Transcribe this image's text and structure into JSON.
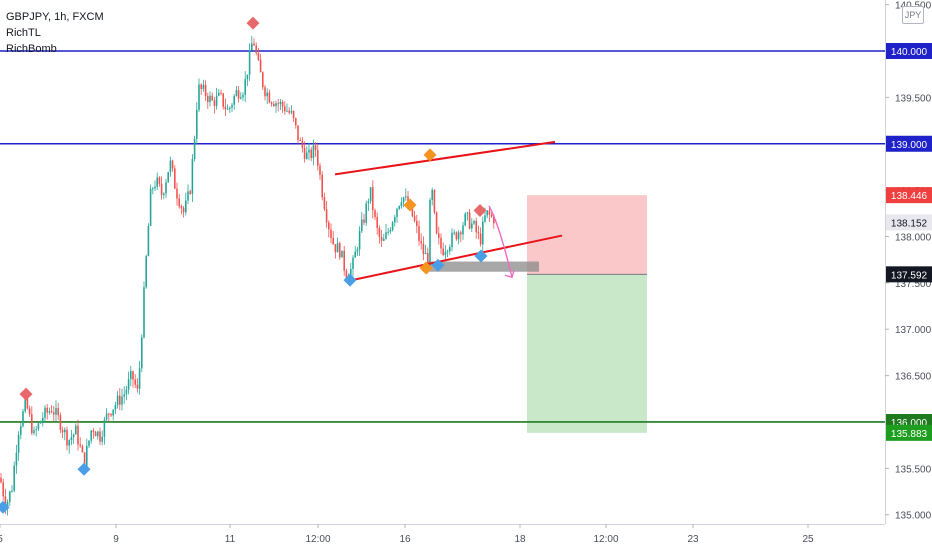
{
  "header": {
    "symbol_line": "GBPJPY, 1h, FXCM",
    "indicator_1": "RichTL",
    "indicator_2": "RichBomb",
    "currency_badge": "JPY"
  },
  "chart_data": {
    "type": "candlestick",
    "symbol": "GBPJPY",
    "timeframe": "1h",
    "source": "FXCM",
    "currency": "JPY",
    "y_axis": {
      "range": [
        134.9,
        140.55
      ],
      "ticks": [
        {
          "value": 135.0,
          "label": "135.000"
        },
        {
          "value": 135.5,
          "label": "135.500"
        },
        {
          "value": 136.5,
          "label": "136.500"
        },
        {
          "value": 137.0,
          "label": "137.000"
        },
        {
          "value": 137.5,
          "label": "137.500"
        },
        {
          "value": 138.0,
          "label": "138.000"
        },
        {
          "value": 138.5,
          "label": "138.500"
        },
        {
          "value": 139.5,
          "label": "139.500"
        },
        {
          "value": 140.5,
          "label": "140.500"
        }
      ]
    },
    "x_axis": {
      "ticks": [
        {
          "t": 0,
          "label": "5"
        },
        {
          "t": 116,
          "label": "9"
        },
        {
          "t": 230,
          "label": "11"
        },
        {
          "t": 318,
          "label": "12:00"
        },
        {
          "t": 405,
          "label": "16"
        },
        {
          "t": 520,
          "label": "18"
        },
        {
          "t": 606,
          "label": "12:00"
        },
        {
          "t": 693,
          "label": "23"
        },
        {
          "t": 808,
          "label": "25"
        }
      ]
    },
    "horizontal_levels": [
      {
        "price": 140.0,
        "label": "140.000",
        "color": "#1e22c8"
      },
      {
        "price": 139.0,
        "label": "139.000",
        "color": "#1e22c8"
      },
      {
        "price": 136.0,
        "label": "136.000",
        "color": "#1f7a1f"
      }
    ],
    "price_labels": [
      {
        "price": 138.446,
        "label": "138.446",
        "bg": "#ef3f3f",
        "fg": "#ffffff"
      },
      {
        "price": 138.152,
        "label": "138.152",
        "bg": "#e8e8ee",
        "fg": "#131722"
      },
      {
        "price": 137.592,
        "label": "137.592",
        "bg": "#131722",
        "fg": "#ffffff"
      },
      {
        "price": 135.883,
        "label": "135.883",
        "bg": "#1e9e1e",
        "fg": "#ffffff"
      }
    ],
    "position": {
      "side": "short",
      "entry": 137.592,
      "stop": 138.446,
      "target": 135.883,
      "t_start": 527,
      "t_end": 647,
      "risk_color": "#f7a3a3",
      "reward_color": "#a3d9a5"
    },
    "trendlines": [
      {
        "t1": 335,
        "p1": 138.67,
        "t2": 555,
        "p2": 139.02,
        "color": "#e8141a"
      },
      {
        "t1": 352,
        "p1": 137.53,
        "t2": 562,
        "p2": 138.01,
        "color": "#e8141a"
      }
    ],
    "zone": {
      "t1": 428,
      "t2": 539,
      "p_top": 137.73,
      "p_bottom": 137.62,
      "color": "#8a8a8a"
    },
    "forecast_arrow": {
      "t1": 489,
      "p1": 138.33,
      "t2": 512,
      "p2": 137.56,
      "color": "#f06bc0"
    },
    "markers": [
      {
        "t": 253,
        "price": 140.3,
        "kind": "peak",
        "color": "#e8696b"
      },
      {
        "t": 26,
        "price": 136.3,
        "kind": "peak",
        "color": "#e8696b"
      },
      {
        "t": 480,
        "price": 138.28,
        "kind": "peak",
        "color": "#e8696b"
      },
      {
        "t": 430,
        "price": 138.88,
        "kind": "pivot-high",
        "color": "#f5951f"
      },
      {
        "t": 410,
        "price": 138.34,
        "kind": "pivot-high",
        "color": "#f5951f"
      },
      {
        "t": 426,
        "price": 137.66,
        "kind": "pivot-low",
        "color": "#f5951f"
      },
      {
        "t": 350,
        "price": 137.53,
        "kind": "trough",
        "color": "#4a9ee6"
      },
      {
        "t": 438,
        "price": 137.69,
        "kind": "trough",
        "color": "#4a9ee6"
      },
      {
        "t": 481,
        "price": 137.79,
        "kind": "trough",
        "color": "#4a9ee6"
      },
      {
        "t": 84,
        "price": 135.49,
        "kind": "trough",
        "color": "#4a9ee6"
      },
      {
        "t": 3,
        "price": 135.08,
        "kind": "trough",
        "color": "#4a9ee6"
      }
    ],
    "price_path": [
      [
        0,
        135.4
      ],
      [
        6,
        135.1
      ],
      [
        12,
        135.3
      ],
      [
        18,
        135.9
      ],
      [
        26,
        136.2
      ],
      [
        34,
        135.85
      ],
      [
        42,
        136.05
      ],
      [
        52,
        136.15
      ],
      [
        60,
        136.0
      ],
      [
        68,
        135.8
      ],
      [
        76,
        135.9
      ],
      [
        84,
        135.55
      ],
      [
        92,
        135.95
      ],
      [
        100,
        135.85
      ],
      [
        108,
        136.1
      ],
      [
        116,
        136.2
      ],
      [
        124,
        136.3
      ],
      [
        132,
        136.5
      ],
      [
        138,
        136.3
      ],
      [
        143,
        137.2
      ],
      [
        147,
        137.9
      ],
      [
        151,
        138.5
      ],
      [
        156,
        138.6
      ],
      [
        162,
        138.45
      ],
      [
        170,
        138.8
      ],
      [
        176,
        138.5
      ],
      [
        184,
        138.25
      ],
      [
        190,
        138.5
      ],
      [
        194,
        139.0
      ],
      [
        198,
        139.6
      ],
      [
        205,
        139.55
      ],
      [
        212,
        139.45
      ],
      [
        220,
        139.5
      ],
      [
        228,
        139.35
      ],
      [
        236,
        139.55
      ],
      [
        244,
        139.6
      ],
      [
        250,
        139.95
      ],
      [
        253,
        140.15
      ],
      [
        258,
        139.85
      ],
      [
        264,
        139.6
      ],
      [
        270,
        139.5
      ],
      [
        276,
        139.45
      ],
      [
        284,
        139.4
      ],
      [
        292,
        139.3
      ],
      [
        300,
        139.0
      ],
      [
        308,
        138.85
      ],
      [
        316,
        138.95
      ],
      [
        322,
        138.5
      ],
      [
        328,
        138.15
      ],
      [
        334,
        137.9
      ],
      [
        340,
        137.85
      ],
      [
        346,
        137.6
      ],
      [
        352,
        137.65
      ],
      [
        358,
        137.95
      ],
      [
        364,
        138.2
      ],
      [
        370,
        138.5
      ],
      [
        376,
        138.1
      ],
      [
        382,
        137.9
      ],
      [
        388,
        138.05
      ],
      [
        396,
        138.3
      ],
      [
        402,
        138.45
      ],
      [
        410,
        138.3
      ],
      [
        416,
        138.1
      ],
      [
        422,
        137.85
      ],
      [
        428,
        137.75
      ],
      [
        431,
        138.6
      ],
      [
        436,
        138.0
      ],
      [
        442,
        137.85
      ],
      [
        450,
        137.95
      ],
      [
        458,
        138.05
      ],
      [
        466,
        138.2
      ],
      [
        474,
        138.1
      ],
      [
        480,
        137.95
      ],
      [
        486,
        138.25
      ],
      [
        492,
        138.2
      ]
    ]
  }
}
